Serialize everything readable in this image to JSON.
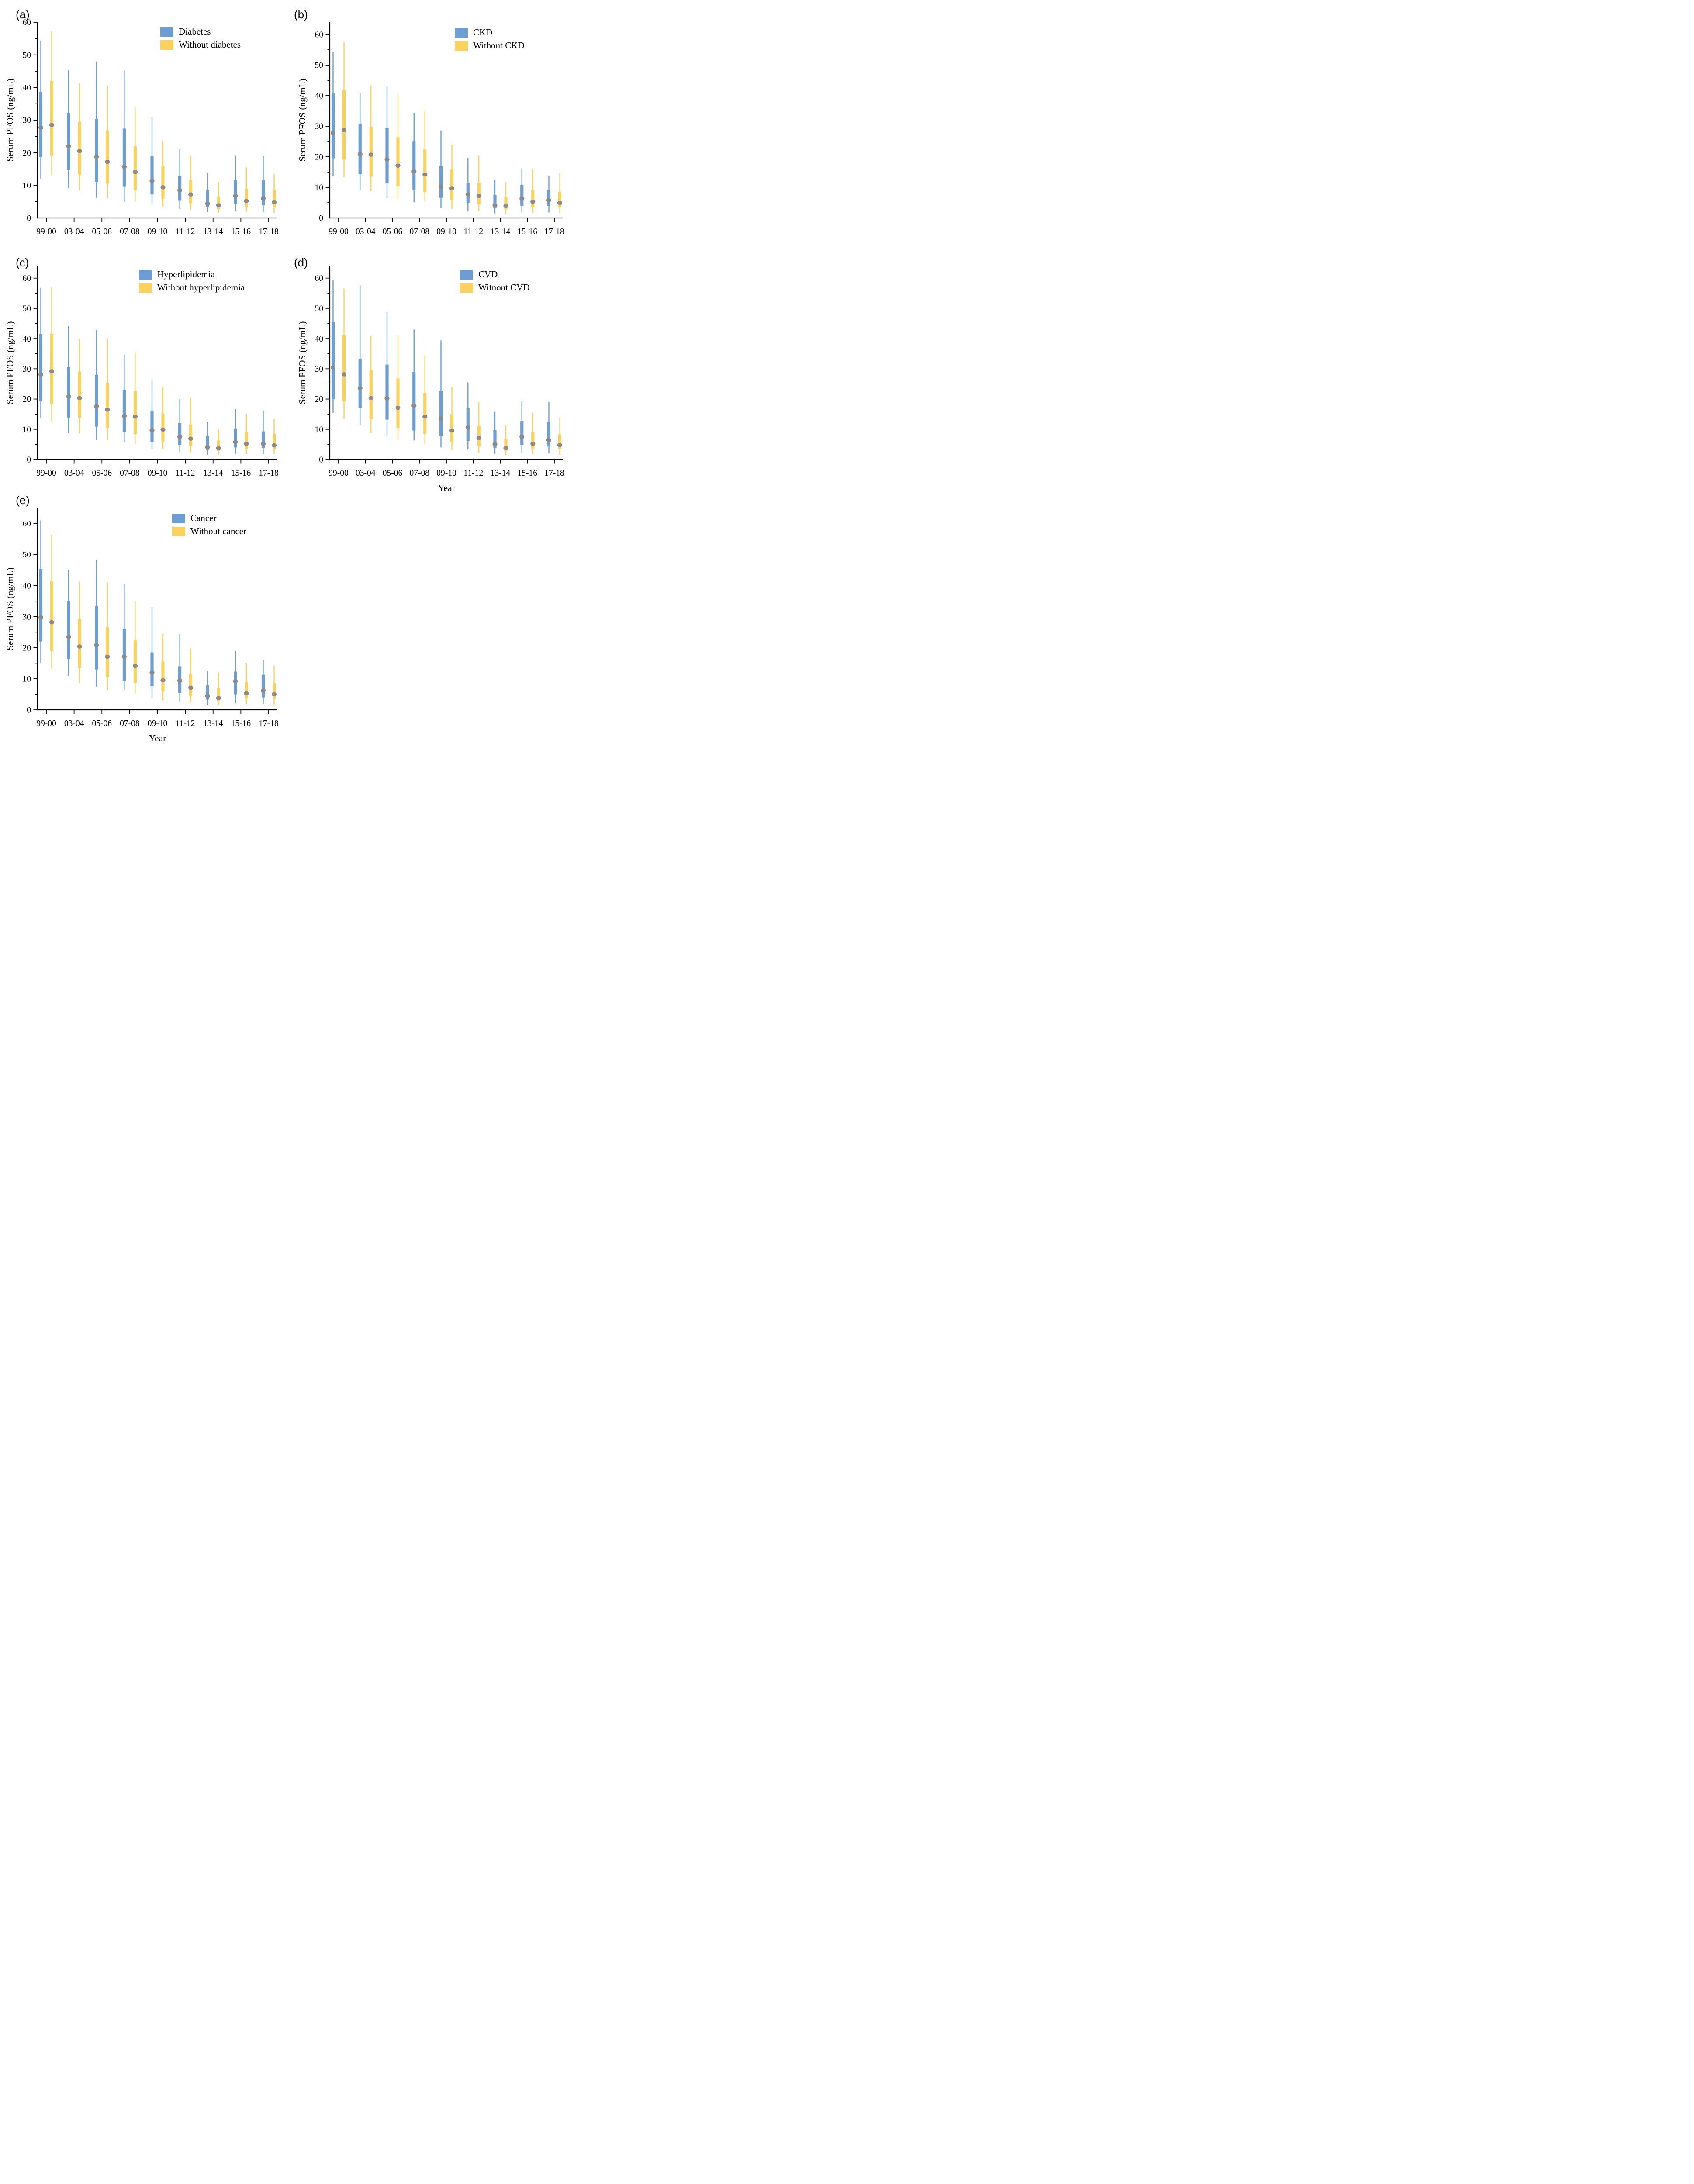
{
  "colors": {
    "blue": "#6C9ED3",
    "yellow": "#FCD15C",
    "marker": "#8B8B8B",
    "axis": "#000000"
  },
  "categories": [
    "99-00",
    "03-04",
    "05-06",
    "07-08",
    "09-10",
    "11-12",
    "13-14",
    "15-16",
    "17-18"
  ],
  "xlabel": "Year",
  "ylabel": "Serum PFOS (ng/mL)",
  "chart_data": [
    {
      "type": "box",
      "panel": "a",
      "label": "(a)",
      "ylabel": "Serum PFOS (ng/mL)",
      "xlabel": "",
      "ylim": [
        0,
        60
      ],
      "yticks": [
        0,
        10,
        20,
        30,
        40,
        50,
        60
      ],
      "minor_step": 5,
      "legend_position": "top-right",
      "grid": false,
      "note": "values per year: [whisker_low, q1, marker, q3, whisker_high] in ng/mL",
      "series": [
        {
          "name": "Diabetes",
          "color": "blue",
          "values": [
            [
              12.0,
              18.7,
              27.7,
              38.7,
              54.3
            ],
            [
              9.2,
              14.6,
              22.0,
              32.3,
              45.3
            ],
            [
              6.2,
              11.0,
              18.8,
              30.4,
              48.0
            ],
            [
              5.0,
              9.7,
              15.7,
              27.4,
              45.2
            ],
            [
              4.5,
              7.2,
              11.4,
              18.9,
              31.0
            ],
            [
              2.8,
              5.3,
              8.5,
              12.8,
              21.0
            ],
            [
              1.8,
              3.2,
              4.4,
              8.5,
              13.9
            ],
            [
              2.0,
              4.3,
              6.8,
              11.7,
              19.2
            ],
            [
              1.9,
              4.0,
              6.0,
              11.5,
              19.0
            ]
          ]
        },
        {
          "name": "Without diabetes",
          "color": "yellow",
          "values": [
            [
              13.2,
              19.2,
              28.5,
              42.0,
              57.3
            ],
            [
              8.5,
              13.3,
              20.5,
              29.5,
              41.3
            ],
            [
              6.0,
              10.5,
              17.2,
              26.8,
              40.6
            ],
            [
              5.0,
              8.5,
              14.1,
              22.0,
              33.8
            ],
            [
              3.5,
              5.8,
              9.4,
              15.9,
              23.7
            ],
            [
              2.5,
              4.5,
              7.2,
              11.5,
              18.9
            ],
            [
              1.5,
              2.8,
              3.9,
              6.6,
              11.0
            ],
            [
              1.8,
              3.5,
              5.2,
              9.0,
              15.5
            ],
            [
              1.5,
              3.3,
              4.8,
              8.7,
              13.5
            ]
          ]
        }
      ]
    },
    {
      "type": "box",
      "panel": "b",
      "label": "(b)",
      "ylabel": "Serum PFOS (ng/mL)",
      "xlabel": "Year",
      "ylim": [
        0,
        64
      ],
      "yticks": [
        0,
        10,
        20,
        30,
        40,
        50,
        60
      ],
      "minor_step": 5,
      "legend_position": "top-right",
      "grid": false,
      "series": [
        {
          "name": "CKD",
          "color": "blue",
          "values": [
            [
              13.6,
              19.5,
              27.8,
              40.7,
              54.3
            ],
            [
              9.0,
              14.3,
              20.9,
              30.8,
              40.8
            ],
            [
              6.5,
              11.4,
              19.1,
              29.5,
              43.2
            ],
            [
              5.1,
              9.3,
              15.2,
              25.1,
              34.3
            ],
            [
              3.2,
              6.6,
              10.3,
              17.0,
              28.6
            ],
            [
              2.2,
              5.0,
              7.8,
              11.5,
              19.7
            ],
            [
              1.5,
              3.2,
              4.1,
              7.5,
              12.4
            ],
            [
              1.8,
              4.0,
              6.3,
              10.8,
              16.2
            ],
            [
              1.8,
              4.0,
              5.8,
              9.2,
              13.8
            ]
          ]
        },
        {
          "name": "Without CKD",
          "color": "yellow",
          "values": [
            [
              13.3,
              19.1,
              28.7,
              41.9,
              57.4
            ],
            [
              8.8,
              13.5,
              20.7,
              29.8,
              43.0
            ],
            [
              6.2,
              10.5,
              17.1,
              26.4,
              40.6
            ],
            [
              5.4,
              8.4,
              14.2,
              22.4,
              35.3
            ],
            [
              3.0,
              5.8,
              9.7,
              15.8,
              24.0
            ],
            [
              2.3,
              4.5,
              7.2,
              11.5,
              20.5
            ],
            [
              1.4,
              2.8,
              3.9,
              6.8,
              11.7
            ],
            [
              1.7,
              3.6,
              5.3,
              9.2,
              16.0
            ],
            [
              1.6,
              3.5,
              4.9,
              8.6,
              14.6
            ]
          ]
        }
      ]
    },
    {
      "type": "box",
      "panel": "c",
      "label": "(c)",
      "ylabel": "Serum PFOS (ng/mL)",
      "xlabel": "",
      "ylim": [
        0,
        64
      ],
      "yticks": [
        0,
        10,
        20,
        30,
        40,
        50,
        60
      ],
      "minor_step": 5,
      "legend_position": "top-right",
      "grid": false,
      "series": [
        {
          "name": "Hyperlipidemia",
          "color": "blue",
          "values": [
            [
              13.7,
              19.4,
              28.1,
              41.5,
              56.8
            ],
            [
              8.7,
              13.9,
              20.8,
              30.5,
              44.2
            ],
            [
              6.4,
              10.9,
              17.6,
              27.9,
              42.8
            ],
            [
              5.6,
              9.2,
              14.4,
              23.1,
              34.7
            ],
            [
              3.4,
              5.9,
              9.7,
              16.2,
              26.1
            ],
            [
              2.5,
              4.8,
              7.5,
              12.1,
              20.0
            ],
            [
              1.6,
              3.1,
              4.1,
              7.7,
              12.5
            ],
            [
              1.9,
              4.0,
              5.8,
              10.3,
              16.7
            ],
            [
              1.8,
              3.9,
              5.2,
              9.3,
              16.2
            ]
          ]
        },
        {
          "name": "Without hyperlipidemia",
          "color": "yellow",
          "values": [
            [
              12.6,
              18.4,
              29.2,
              41.6,
              57.2
            ],
            [
              8.6,
              13.9,
              20.3,
              29.1,
              40.0
            ],
            [
              6.3,
              10.5,
              16.5,
              25.4,
              40.1
            ],
            [
              5.2,
              8.4,
              14.2,
              22.6,
              35.3
            ],
            [
              3.3,
              5.9,
              9.9,
              15.2,
              23.8
            ],
            [
              2.4,
              4.5,
              6.9,
              11.6,
              20.4
            ],
            [
              1.6,
              2.9,
              3.7,
              6.3,
              10.0
            ],
            [
              1.8,
              3.6,
              5.2,
              9.1,
              15.0
            ],
            [
              1.7,
              3.4,
              4.7,
              8.4,
              13.3
            ]
          ]
        }
      ]
    },
    {
      "type": "box",
      "panel": "d",
      "label": "(d)",
      "ylabel": "Serum PFOS (ng/mL)",
      "xlabel": "Year",
      "ylim": [
        0,
        64
      ],
      "yticks": [
        0,
        10,
        20,
        30,
        40,
        50,
        60
      ],
      "minor_step": 5,
      "legend_position": "top-right",
      "grid": false,
      "series": [
        {
          "name": "CVD",
          "color": "blue",
          "values": [
            [
              15.5,
              20.0,
              30.5,
              45.4,
              59.3
            ],
            [
              11.3,
              17.1,
              23.6,
              33.1,
              57.6
            ],
            [
              7.6,
              13.2,
              20.2,
              31.4,
              48.7
            ],
            [
              6.3,
              9.6,
              17.8,
              29.0,
              43.0
            ],
            [
              4.0,
              7.8,
              13.6,
              22.6,
              39.4
            ],
            [
              3.3,
              6.2,
              10.5,
              17.0,
              25.5
            ],
            [
              1.9,
              3.8,
              5.1,
              9.7,
              15.8
            ],
            [
              2.2,
              4.8,
              7.5,
              12.7,
              19.2
            ],
            [
              2.0,
              4.3,
              6.4,
              12.5,
              19.1
            ]
          ]
        },
        {
          "name": "Witnout CVD",
          "color": "yellow",
          "values": [
            [
              13.3,
              19.2,
              28.2,
              41.3,
              56.6
            ],
            [
              8.8,
              13.4,
              20.3,
              29.5,
              40.9
            ],
            [
              6.3,
              10.5,
              17.1,
              26.8,
              41.2
            ],
            [
              5.2,
              8.5,
              14.2,
              22.0,
              34.5
            ],
            [
              3.1,
              5.8,
              9.6,
              15.0,
              24.0
            ],
            [
              2.3,
              4.4,
              7.1,
              11.0,
              19.0
            ],
            [
              1.5,
              2.8,
              3.8,
              6.8,
              11.3
            ],
            [
              1.7,
              3.5,
              5.2,
              9.0,
              15.5
            ],
            [
              1.6,
              3.4,
              4.8,
              8.3,
              13.9
            ]
          ]
        }
      ]
    },
    {
      "type": "box",
      "panel": "e",
      "label": "(e)",
      "ylabel": "Serum PFOS (ng/mL)",
      "xlabel": "Year",
      "ylim": [
        0,
        65
      ],
      "yticks": [
        0,
        10,
        20,
        30,
        40,
        50,
        60
      ],
      "minor_step": 5,
      "legend_position": "top-right",
      "grid": false,
      "series": [
        {
          "name": "Cancer",
          "color": "blue",
          "values": [
            [
              15.0,
              22.0,
              29.8,
              45.3,
              61.0
            ],
            [
              11.0,
              16.3,
              23.5,
              35.0,
              45.0
            ],
            [
              7.5,
              13.0,
              20.8,
              33.5,
              48.3
            ],
            [
              6.5,
              9.4,
              17.1,
              26.1,
              40.5
            ],
            [
              4.0,
              7.6,
              12.0,
              18.5,
              33.2
            ],
            [
              2.6,
              5.5,
              9.4,
              14.0,
              24.4
            ],
            [
              1.6,
              3.3,
              4.5,
              8.0,
              12.5
            ],
            [
              2.1,
              5.0,
              9.2,
              12.3,
              19.0
            ],
            [
              1.9,
              4.0,
              6.2,
              11.3,
              16.0
            ]
          ]
        },
        {
          "name": "Without cancer",
          "color": "yellow",
          "values": [
            [
              13.2,
              19.0,
              28.2,
              41.3,
              56.5
            ],
            [
              8.6,
              13.5,
              20.4,
              29.4,
              41.3
            ],
            [
              6.3,
              10.5,
              17.1,
              26.6,
              41.0
            ],
            [
              5.3,
              8.6,
              14.1,
              22.4,
              35.0
            ],
            [
              3.1,
              5.9,
              9.5,
              15.5,
              24.5
            ],
            [
              2.3,
              4.5,
              7.1,
              11.4,
              19.7
            ],
            [
              1.5,
              2.9,
              3.8,
              7.0,
              12.0
            ],
            [
              1.8,
              3.6,
              5.3,
              9.0,
              15.0
            ],
            [
              1.6,
              3.5,
              5.0,
              8.7,
              14.2
            ]
          ]
        }
      ]
    }
  ]
}
